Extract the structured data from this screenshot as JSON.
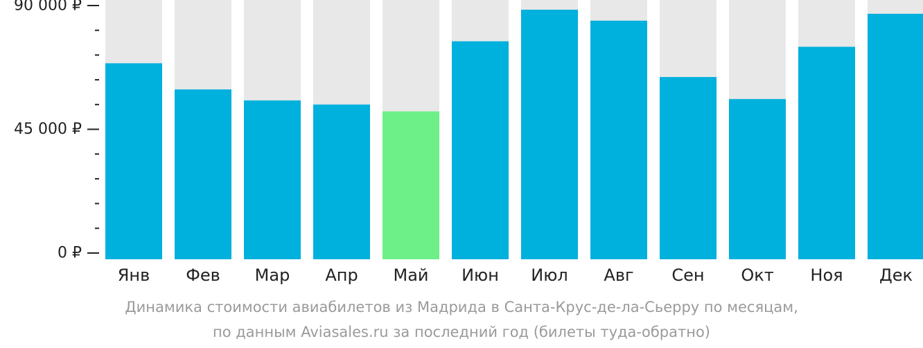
{
  "chart_data": {
    "type": "bar",
    "categories": [
      "Янв",
      "Фев",
      "Мар",
      "Апр",
      "Май",
      "Июн",
      "Июл",
      "Авг",
      "Сен",
      "Окт",
      "Ноя",
      "Дек"
    ],
    "values": [
      69000,
      59500,
      55500,
      54000,
      51500,
      77000,
      88500,
      84500,
      64000,
      56000,
      75000,
      87000
    ],
    "ylim": [
      0,
      90000
    ],
    "yticks": [
      {
        "value": 0,
        "label": "0 ₽"
      },
      {
        "value": 45000,
        "label": "45 000 ₽"
      },
      {
        "value": 90000,
        "label": "90 000 ₽"
      }
    ],
    "minor_tick_step": 9000,
    "highlight_index": 4,
    "grid": false,
    "legend": "none"
  },
  "colors": {
    "bar": "#00B0DD",
    "highlight": "#6CF087",
    "track": "#E8E8E8",
    "axis": "#222222",
    "caption": "#9A9A9A"
  },
  "caption": {
    "line1": "Динамика стоимости авиабилетов из Мадрида в Санта-Крус-де-ла-Сьерру по месяцам,",
    "line2": "по данным Aviasales.ru за последний год (билеты туда-обратно)"
  }
}
